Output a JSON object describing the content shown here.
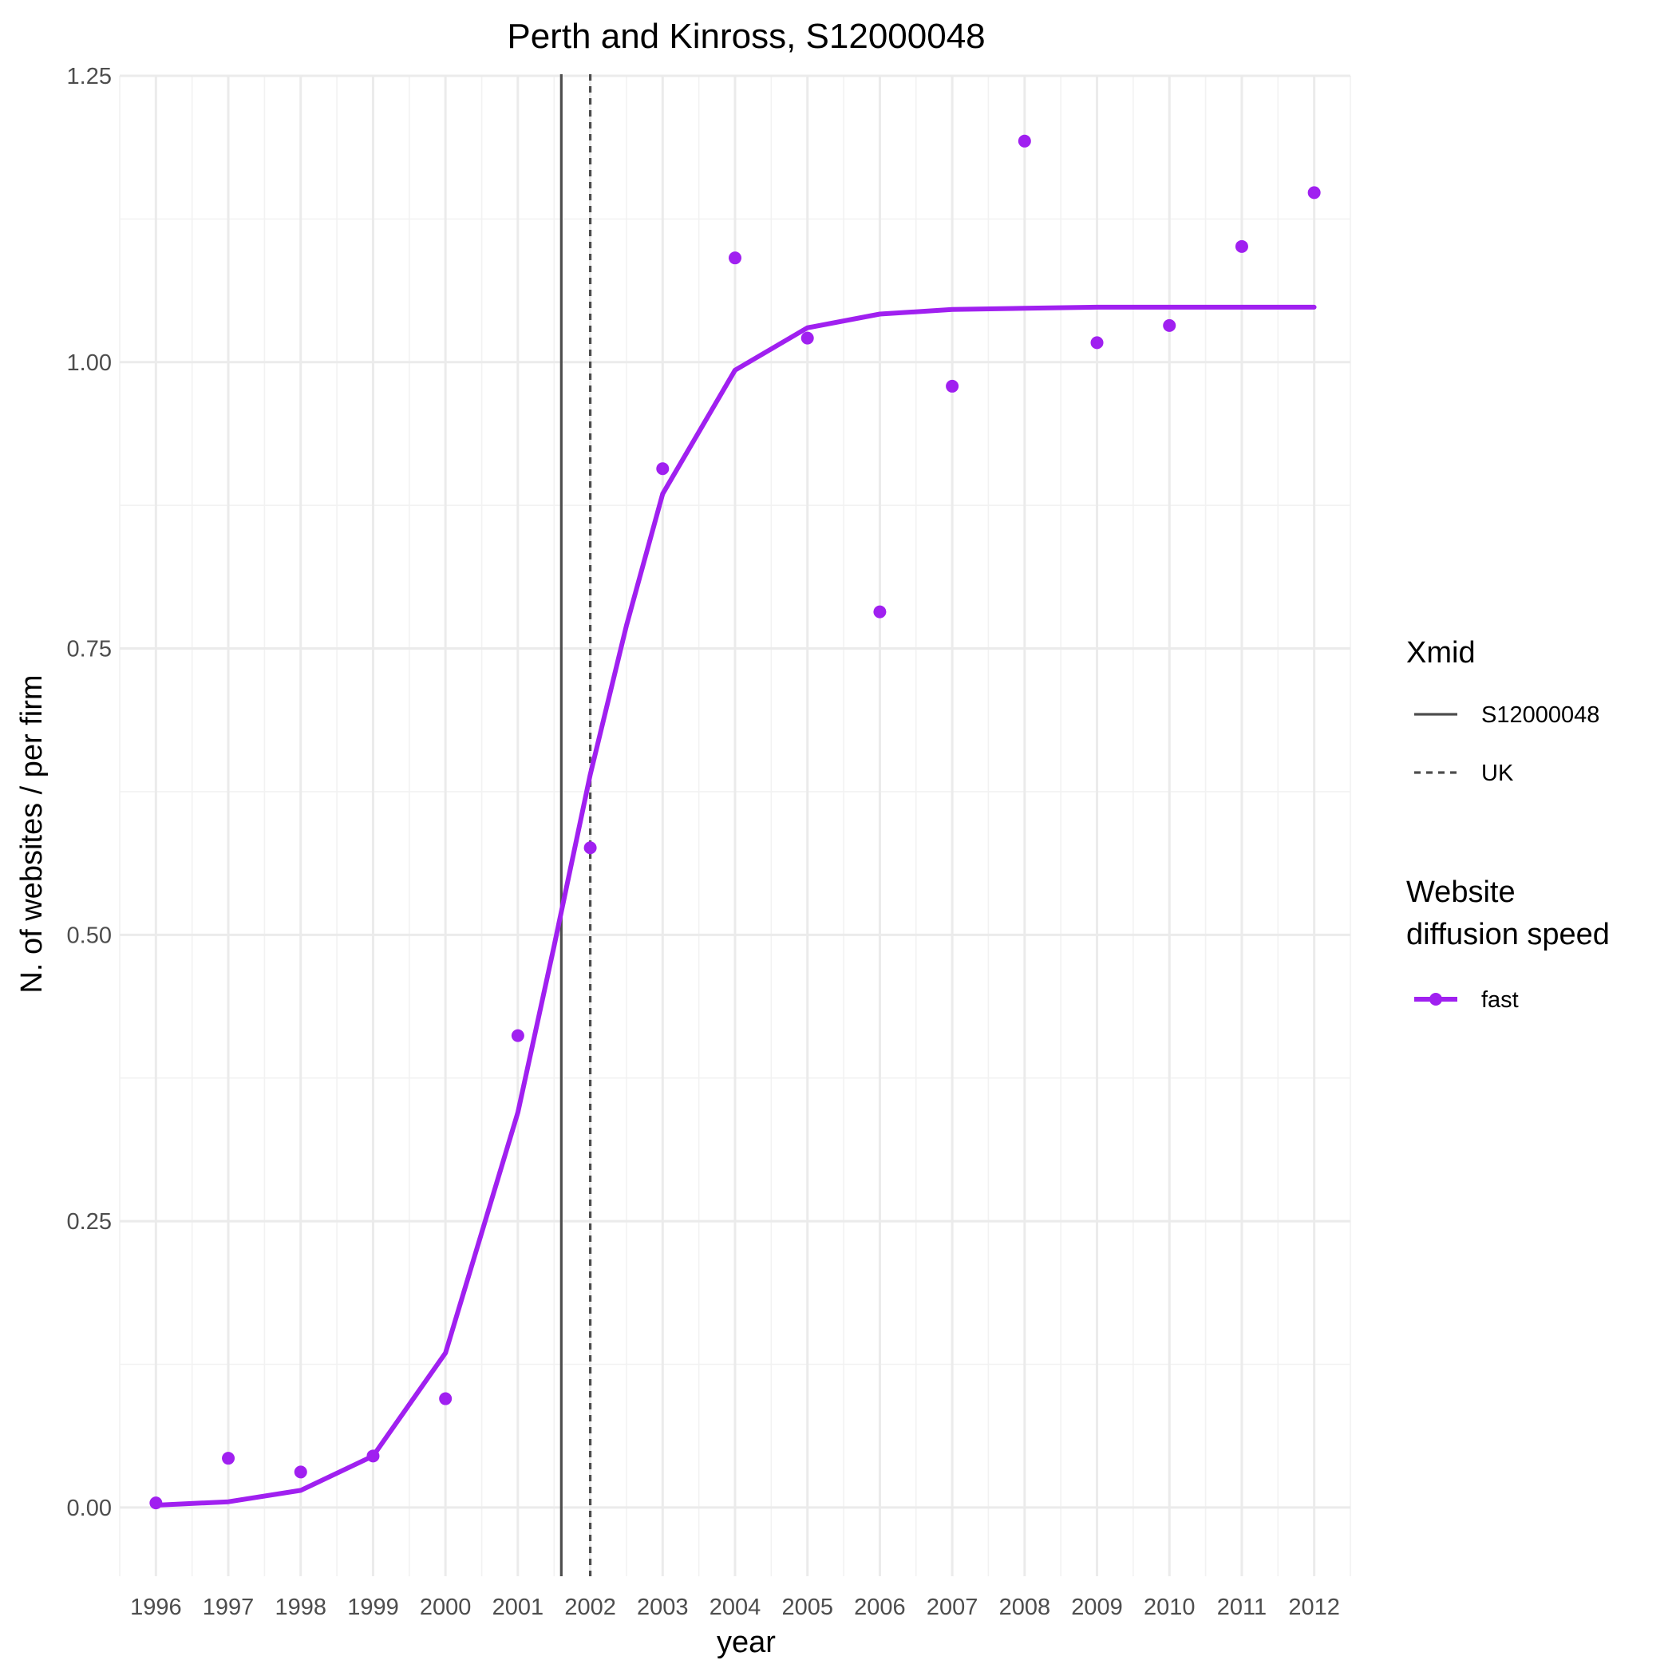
{
  "chart_data": {
    "type": "line",
    "title": "Perth and Kinross, S12000048",
    "xlabel": "year",
    "ylabel": "N. of websites / per firm",
    "xlim": [
      1995.5,
      2012.5
    ],
    "ylim": [
      -0.06,
      1.25
    ],
    "x_ticks": [
      "1996",
      "1997",
      "1998",
      "1999",
      "2000",
      "2001",
      "2002",
      "2003",
      "2004",
      "2005",
      "2006",
      "2007",
      "2008",
      "2009",
      "2010",
      "2011",
      "2012"
    ],
    "y_ticks": [
      "0.00",
      "0.25",
      "0.50",
      "0.75",
      "1.00",
      "1.25"
    ],
    "y_tick_values": [
      0,
      0.25,
      0.5,
      0.75,
      1.0,
      1.25
    ],
    "grid": true,
    "legend_placement": "right",
    "series": [
      {
        "name": "fast",
        "color": "#a020f0",
        "fitted_line": {
          "x": [
            1996,
            1997,
            1998,
            1999,
            2000,
            2001,
            2001.5,
            2002,
            2002.5,
            2003,
            2004,
            2005,
            2006,
            2007,
            2008,
            2009,
            2010,
            2011,
            2012
          ],
          "y": [
            0.002,
            0.005,
            0.015,
            0.045,
            0.135,
            0.345,
            0.49,
            0.64,
            0.77,
            0.885,
            0.993,
            1.03,
            1.042,
            1.046,
            1.047,
            1.048,
            1.048,
            1.048,
            1.048
          ]
        },
        "points": {
          "x": [
            1996,
            1997,
            1998,
            1999,
            2000,
            2001,
            2002,
            2003,
            2004,
            2005,
            2006,
            2007,
            2008,
            2009,
            2010,
            2011,
            2012
          ],
          "y": [
            0.004,
            0.043,
            0.031,
            0.045,
            0.095,
            0.412,
            0.576,
            0.907,
            1.091,
            1.021,
            0.782,
            0.979,
            1.193,
            1.017,
            1.032,
            1.101,
            1.148
          ]
        }
      }
    ],
    "vertical_lines": [
      {
        "name": "S12000048",
        "x": 2001.6,
        "style": "solid",
        "color": "#4d4d4d"
      },
      {
        "name": "UK",
        "x": 2002.0,
        "style": "dashed",
        "color": "#4d4d4d"
      }
    ],
    "legends": [
      {
        "title": "Xmid",
        "entries": [
          "S12000048",
          "UK"
        ]
      },
      {
        "title_lines": [
          "Website",
          "diffusion speed"
        ],
        "entries": [
          "fast"
        ]
      }
    ]
  }
}
